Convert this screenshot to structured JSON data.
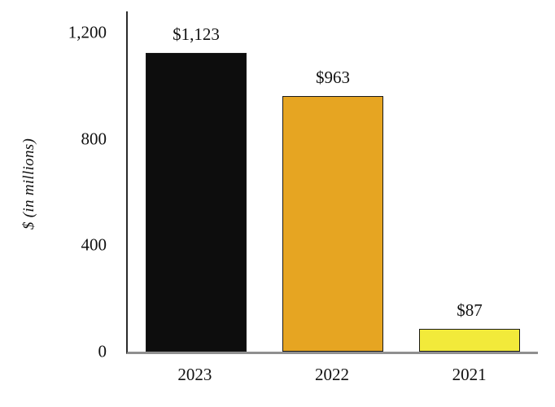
{
  "chart_data": {
    "type": "bar",
    "categories": [
      "2023",
      "2022",
      "2021"
    ],
    "values": [
      1123,
      963,
      87
    ],
    "value_labels": [
      "$1,123",
      "$963",
      "$87"
    ],
    "bar_colors": [
      "#0d0d0d",
      "#e6a522",
      "#f2ea3a"
    ],
    "bar_border_color": "#1a1a1a",
    "title": "",
    "xlabel": "",
    "ylabel": "$ (in millions)",
    "ylim": [
      0,
      1280
    ],
    "yticks": [
      {
        "value": 0,
        "label": "0"
      },
      {
        "value": 400,
        "label": "400"
      },
      {
        "value": 800,
        "label": "800"
      },
      {
        "value": 1200,
        "label": "1,200"
      }
    ],
    "legend": false,
    "grid": false
  }
}
